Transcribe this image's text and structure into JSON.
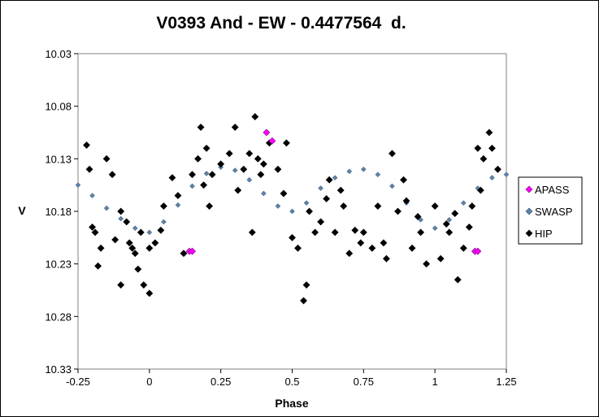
{
  "chart_data": {
    "type": "scatter",
    "title": "V0393 And - EW - 0.4477564  d.",
    "xlabel": "Phase",
    "ylabel": "V",
    "xlim": [
      -0.25,
      1.25
    ],
    "ylim": [
      10.03,
      10.33
    ],
    "y_reversed": true,
    "x_ticks": [
      "-0.25",
      "0",
      "0.25",
      "0.5",
      "0.75",
      "1",
      "1.25"
    ],
    "y_ticks": [
      "10.03",
      "10.08",
      "10.13",
      "10.18",
      "10.23",
      "10.28",
      "10.33"
    ],
    "grid": false,
    "legend_position": "right",
    "series": [
      {
        "name": "APASS",
        "color": "#ff00ff",
        "marker": "diamond",
        "x": [
          0.14,
          0.15,
          0.41,
          0.43,
          1.14,
          1.15
        ],
        "y": [
          10.218,
          10.218,
          10.105,
          10.113,
          10.218,
          10.218
        ]
      },
      {
        "name": "SWASP",
        "color": "#5f83a8",
        "marker": "diamond-small",
        "x": [
          -0.25,
          -0.2,
          -0.15,
          -0.1,
          -0.05,
          0.0,
          0.05,
          0.1,
          0.15,
          0.2,
          0.25,
          0.3,
          0.35,
          0.4,
          0.45,
          0.5,
          0.55,
          0.6,
          0.65,
          0.7,
          0.75,
          0.8,
          0.85,
          0.9,
          0.95,
          1.0,
          1.05,
          1.1,
          1.15,
          1.2,
          1.25
        ],
        "y": [
          10.155,
          10.165,
          10.177,
          10.187,
          10.196,
          10.2,
          10.19,
          10.174,
          10.156,
          10.144,
          10.138,
          10.141,
          10.15,
          10.163,
          10.175,
          10.18,
          10.172,
          10.158,
          10.148,
          10.142,
          10.14,
          10.145,
          10.156,
          10.172,
          10.188,
          10.196,
          10.188,
          10.172,
          10.158,
          10.148,
          10.145
        ]
      },
      {
        "name": "HIP",
        "color": "#000000",
        "marker": "diamond",
        "x": [
          -0.22,
          -0.21,
          -0.19,
          -0.17,
          -0.15,
          -0.13,
          -0.2,
          -0.18,
          -0.12,
          -0.1,
          -0.08,
          -0.06,
          -0.04,
          -0.02,
          0.0,
          0.02,
          0.04,
          -0.05,
          -0.03,
          0.0,
          0.05,
          0.08,
          0.1,
          0.12,
          0.15,
          0.17,
          0.18,
          0.2,
          0.22,
          0.25,
          0.28,
          0.3,
          0.33,
          0.35,
          0.37,
          0.38,
          0.4,
          0.42,
          0.45,
          0.47,
          0.5,
          0.52,
          0.54,
          0.55,
          0.58,
          0.6,
          0.62,
          0.65,
          0.68,
          0.7,
          0.72,
          0.75,
          0.78,
          0.8,
          0.82,
          0.85,
          0.87,
          0.9,
          0.92,
          0.95,
          0.97,
          1.0,
          1.02,
          1.05,
          1.07,
          1.1,
          1.12,
          1.15,
          1.17,
          1.19,
          1.2,
          1.22,
          -0.1,
          -0.07,
          0.19,
          0.21,
          0.31,
          0.36,
          0.39,
          0.48,
          0.56,
          0.63,
          0.67,
          0.74,
          0.83,
          0.89,
          0.94,
          1.04,
          1.08,
          1.13,
          1.16
        ],
        "y": [
          10.117,
          10.14,
          10.2,
          10.215,
          10.13,
          10.145,
          10.195,
          10.232,
          10.207,
          10.25,
          10.19,
          10.215,
          10.235,
          10.25,
          10.258,
          10.21,
          10.198,
          10.22,
          10.2,
          10.215,
          10.175,
          10.148,
          10.165,
          10.22,
          10.145,
          10.13,
          10.1,
          10.12,
          10.145,
          10.135,
          10.125,
          10.1,
          10.14,
          10.125,
          10.09,
          10.13,
          10.135,
          10.115,
          10.14,
          10.163,
          10.205,
          10.215,
          10.265,
          10.25,
          10.2,
          10.19,
          10.168,
          10.2,
          10.175,
          10.22,
          10.198,
          10.2,
          10.215,
          10.175,
          10.21,
          10.125,
          10.18,
          10.17,
          10.215,
          10.2,
          10.23,
          10.175,
          10.225,
          10.2,
          10.182,
          10.215,
          10.195,
          10.12,
          10.13,
          10.105,
          10.12,
          10.14,
          10.18,
          10.21,
          10.155,
          10.175,
          10.16,
          10.2,
          10.145,
          10.115,
          10.18,
          10.15,
          10.16,
          10.21,
          10.225,
          10.15,
          10.185,
          10.192,
          10.245,
          10.175,
          10.16
        ]
      }
    ]
  }
}
